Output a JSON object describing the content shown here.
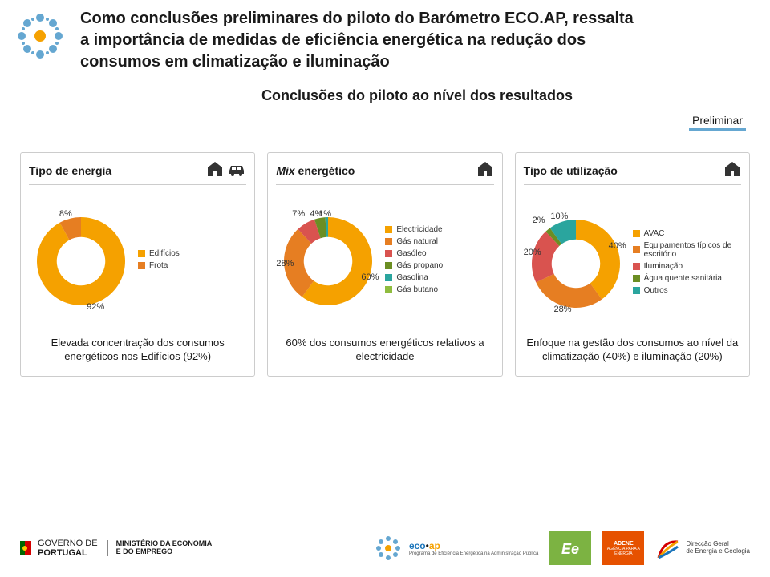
{
  "colors": {
    "amber": "#f5a100",
    "orange": "#e67e22",
    "red": "#d9534f",
    "green_dark": "#6b8e23",
    "green_light": "#8fbc3f",
    "teal": "#2aa59e",
    "blue": "#1b75bb",
    "blue_light": "#65a7d1",
    "grey": "#bfbfbf"
  },
  "header": {
    "title_line1": "Como conclusões preliminares do piloto do Barómetro ECO.AP, ressalta",
    "title_line2": "a importância de medidas de eficiência energética na redução dos",
    "title_line3": "consumos em climatização e iluminação",
    "subtitle": "Conclusões do piloto ao nível dos resultados",
    "preliminar": "Preliminar"
  },
  "panels": [
    {
      "title_html": "Tipo de energia",
      "icons": [
        "house",
        "car"
      ],
      "donut": {
        "inner_ratio": 0.55,
        "series": [
          {
            "label": "Edifícios",
            "value": 92,
            "color": "#f5a100",
            "show_pct": true,
            "pct_pos": "bl"
          },
          {
            "label": "Frota",
            "value": 8,
            "color": "#e67e22",
            "show_pct": true,
            "pct_pos": "tl"
          }
        ]
      },
      "caption": "Elevada concentração dos consumos energéticos nos Edifícios (92%)"
    },
    {
      "title_html": "<span class='mix'>Mix</span> energético",
      "icons": [
        "house"
      ],
      "donut": {
        "inner_ratio": 0.55,
        "series": [
          {
            "label": "Electricidade",
            "value": 60,
            "color": "#f5a100",
            "show_pct": true,
            "pct_pos": "r"
          },
          {
            "label": "Gás natural",
            "value": 28,
            "color": "#e67e22",
            "show_pct": true,
            "pct_pos": "bl"
          },
          {
            "label": "Gasóleo",
            "value": 7,
            "color": "#d9534f",
            "show_pct": true,
            "pct_pos": "tl"
          },
          {
            "label": "Gás propano",
            "value": 4,
            "color": "#6b8e23",
            "show_pct": true,
            "pct_pos": "t"
          },
          {
            "label": "Gasolina",
            "value": 1,
            "color": "#2aa59e",
            "show_pct": true,
            "pct_pos": "tr"
          },
          {
            "label": "Gás butano",
            "value": 0,
            "color": "#8fbc3f",
            "show_pct": false
          }
        ]
      },
      "caption": "60% dos consumos energéticos relativos a electricidade"
    },
    {
      "title_html": "Tipo de utilização",
      "icons": [
        "house"
      ],
      "donut": {
        "inner_ratio": 0.55,
        "series": [
          {
            "label": "AVAC",
            "value": 40,
            "color": "#f5a100",
            "show_pct": true,
            "pct_pos": "r"
          },
          {
            "label": "Equipamentos típicos de escritório",
            "value": 28,
            "color": "#e67e22",
            "show_pct": true,
            "pct_pos": "b"
          },
          {
            "label": "Iluminação",
            "value": 20,
            "color": "#d9534f",
            "show_pct": true,
            "pct_pos": "bl"
          },
          {
            "label": "Água quente sanitária",
            "value": 2,
            "color": "#6b8e23",
            "show_pct": true,
            "pct_pos": "tl"
          },
          {
            "label": "Outros",
            "value": 10,
            "color": "#2aa59e",
            "show_pct": true,
            "pct_pos": "t"
          }
        ]
      },
      "caption": "Enfoque na gestão dos consumos ao nível da climatização (40%) e iluminação (20%)"
    }
  ],
  "footer": {
    "gov1": "GOVERNO DE",
    "gov2": "PORTUGAL",
    "min1": "MINISTÉRIO DA ECONOMIA",
    "min2": "E DO EMPREGO",
    "eco": "eco",
    "ap": "ap",
    "eco_sub": "Programa de Eficiência Energética na Administração Pública",
    "adene1": "ADENE",
    "adene2": "AGÊNCIA PARA A ENERGIA",
    "dgeg1": "Direcção Geral",
    "dgeg2": "de Energia e Geologia"
  }
}
